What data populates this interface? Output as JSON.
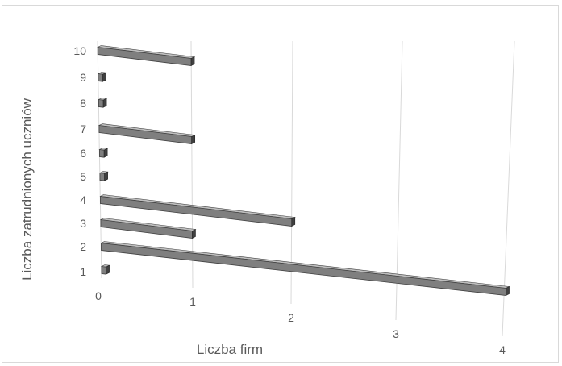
{
  "chart_data": {
    "type": "bar",
    "orientation": "horizontal",
    "style": "3d",
    "categories": [
      "1",
      "2",
      "3",
      "4",
      "5",
      "6",
      "7",
      "8",
      "9",
      "10"
    ],
    "values": [
      0,
      4,
      1,
      2,
      0,
      0,
      1,
      0,
      0,
      1
    ],
    "xlabel": "Liczba firm",
    "ylabel": "Liczba zatrudnionych uczniów",
    "xticks": [
      "0",
      "1",
      "2",
      "3",
      "4"
    ],
    "xlim": [
      0,
      4
    ],
    "grid": true,
    "legend": "none",
    "bar_color": "#7f7f7f"
  }
}
